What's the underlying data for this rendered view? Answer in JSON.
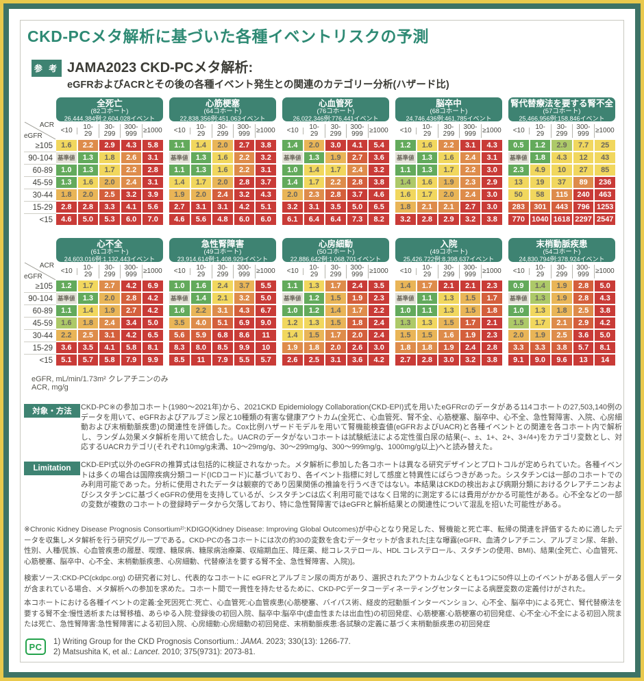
{
  "page": {
    "title": "CKD-PCメタ解析に基づいた各種イベントリスクの予測",
    "ref_badge": "参 考",
    "heading": "JAMA2023 CKD-PCメタ解析:",
    "subheading": "eGFRおよびACRとその後の各種イベント発生との関連のカテゴリー分析(ハザード比)"
  },
  "colors": {
    "frame_yellow": "#e9c94d",
    "frame_teal": "#3d7366",
    "header_teal": "#3e8372",
    "title_green": "#2e8a74"
  },
  "palette": {
    "b": "#e2e1d6",
    "g": "#63aa5c",
    "lg": "#adc968",
    "y": "#f1d75e",
    "t": "#e9b557",
    "o": "#de8c4b",
    "ro": "#d45f3c",
    "r": "#c93b37"
  },
  "axis": {
    "col_label": "ACR",
    "row_label": "eGFR",
    "col_headers": [
      "<10",
      "10-\n29",
      "30-\n299",
      "300-\n999",
      "≥1000"
    ],
    "row_headers": [
      "≥105",
      "90-104",
      "60-89",
      "45-59",
      "30-44",
      "15-29",
      "<15"
    ]
  },
  "tables": [
    {
      "name": "全死亡",
      "cohort": "(82コホート)",
      "counts": "26,444,384例:2,604,028イベント",
      "rows": [
        [
          "1.6|y",
          "2.2|o",
          "2.9|r",
          "4.3|r",
          "5.8|r"
        ],
        [
          "基準値|b",
          "1.3|g",
          "1.8|y",
          "2.6|o",
          "3.1|r"
        ],
        [
          "1.0|g",
          "1.3|g",
          "1.7|y",
          "2.2|o",
          "2.8|r"
        ],
        [
          "1.3|g",
          "1.6|y",
          "2.0|t",
          "2.4|o",
          "3.1|r"
        ],
        [
          "1.8|t",
          "2.0|t",
          "2.5|ro",
          "3.2|r",
          "3.9|r"
        ],
        [
          "2.8|r",
          "2.8|r",
          "3.3|r",
          "4.1|r",
          "5.6|r"
        ],
        [
          "4.6|r",
          "5.0|r",
          "5.3|r",
          "6.0|r",
          "7.0|r"
        ]
      ]
    },
    {
      "name": "心筋梗塞",
      "cohort": "(64コホート)",
      "counts": "22,838,356例:451,063イベント",
      "rows": [
        [
          "1.1|g",
          "1.4|y",
          "2.0|t",
          "2.7|r",
          "3.8|r"
        ],
        [
          "基準値|b",
          "1.3|g",
          "1.6|y",
          "2.2|o",
          "3.2|r"
        ],
        [
          "1.1|g",
          "1.3|g",
          "1.6|y",
          "2.2|o",
          "3.1|r"
        ],
        [
          "1.4|y",
          "1.7|y",
          "2.0|t",
          "2.8|r",
          "3.7|r"
        ],
        [
          "1.9|t",
          "2.0|t",
          "2.4|ro",
          "3.2|r",
          "4.3|r"
        ],
        [
          "2.7|r",
          "3.1|r",
          "3.1|r",
          "4.2|r",
          "5.1|r"
        ],
        [
          "4.6|r",
          "5.6|r",
          "4.8|r",
          "6.0|r",
          "6.0|r"
        ]
      ]
    },
    {
      "name": "心血管死",
      "cohort": "(76コホート)",
      "counts": "26,022,346例:776,441イベント",
      "rows": [
        [
          "1.4|g",
          "2.0|t",
          "3.0|r",
          "4.1|r",
          "5.4|r"
        ],
        [
          "基準値|b",
          "1.3|g",
          "1.9|t",
          "2.7|ro",
          "3.6|r"
        ],
        [
          "1.0|g",
          "1.4|y",
          "1.7|y",
          "2.4|o",
          "3.2|r"
        ],
        [
          "1.4|g",
          "1.7|y",
          "2.2|o",
          "2.8|ro",
          "3.8|r"
        ],
        [
          "2.0|t",
          "2.3|o",
          "2.8|ro",
          "3.7|r",
          "4.6|r"
        ],
        [
          "3.2|r",
          "3.1|r",
          "3.5|r",
          "5.0|r",
          "6.5|r"
        ],
        [
          "6.1|r",
          "6.4|r",
          "6.4|r",
          "7.3|r",
          "8.2|r"
        ]
      ]
    },
    {
      "name": "脳卒中",
      "cohort": "(68コホート)",
      "counts": "24,746,436例:461,785イベント",
      "rows": [
        [
          "1.2|g",
          "1.6|y",
          "2.2|o",
          "3.1|r",
          "4.3|r"
        ],
        [
          "基準値|b",
          "1.3|g",
          "1.6|y",
          "2.4|o",
          "3.1|r"
        ],
        [
          "1.1|g",
          "1.3|g",
          "1.7|y",
          "2.2|o",
          "3.0|r"
        ],
        [
          "1.4|lg",
          "1.6|y",
          "1.9|t",
          "2.3|o",
          "2.9|r"
        ],
        [
          "1.6|y",
          "1.7|y",
          "2.0|t",
          "2.4|o",
          "3.0|r"
        ],
        [
          "1.8|t",
          "2.1|o",
          "2.1|o",
          "2.7|r",
          "3.0|r"
        ],
        [
          "3.2|r",
          "2.8|r",
          "2.9|r",
          "3.2|r",
          "3.8|r"
        ]
      ]
    },
    {
      "name": "腎代替療法を要する腎不全",
      "cohort": "(57コホート)",
      "counts": "25,466,956例:158,846イベント",
      "rows": [
        [
          "0.5|g",
          "1.2|g",
          "2.9|lg",
          "7.7|y",
          "25|y"
        ],
        [
          "基準値|b",
          "1.8|g",
          "4.3|y",
          "12|y",
          "43|y"
        ],
        [
          "2.3|g",
          "4.9|y",
          "10|y",
          "27|y",
          "85|y"
        ],
        [
          "13|y",
          "19|y",
          "37|y",
          "89|o",
          "236|r"
        ],
        [
          "50|y",
          "58|y",
          "115|o",
          "240|r",
          "463|r"
        ],
        [
          "283|ro",
          "301|ro",
          "443|ro",
          "796|r",
          "1253|r"
        ],
        [
          "770|r",
          "1040|r",
          "1618|r",
          "2297|r",
          "2547|r"
        ]
      ]
    },
    {
      "name": "心不全",
      "cohort": "(61コホート)",
      "counts": "24,603,016例:1,132,443イベント",
      "rows": [
        [
          "1.2|g",
          "1.7|y",
          "2.7|o",
          "4.2|r",
          "6.9|r"
        ],
        [
          "基準値|b",
          "1.3|g",
          "2.0|t",
          "2.8|ro",
          "4.2|r"
        ],
        [
          "1.1|g",
          "1.4|y",
          "1.9|t",
          "2.7|ro",
          "4.2|r"
        ],
        [
          "1.6|lg",
          "1.8|t",
          "2.4|o",
          "3.4|r",
          "5.0|r"
        ],
        [
          "2.2|t",
          "2.5|o",
          "3.1|ro",
          "4.2|r",
          "6.5|r"
        ],
        [
          "3.6|r",
          "3.5|r",
          "4.1|r",
          "5.8|r",
          "8.1|r"
        ],
        [
          "5.1|r",
          "5.7|r",
          "5.8|r",
          "7.9|r",
          "9.9|r"
        ]
      ]
    },
    {
      "name": "急性腎障害",
      "cohort": "(49コホート)",
      "counts": "23,914,614例:1,408,929イベント",
      "rows": [
        [
          "1.0|g",
          "1.6|g",
          "2.4|y",
          "3.7|t",
          "5.5|r"
        ],
        [
          "基準値|b",
          "1.4|g",
          "2.1|y",
          "3.2|o",
          "5.0|r"
        ],
        [
          "1.6|g",
          "2.2|t",
          "3.1|o",
          "4.3|ro",
          "6.7|r"
        ],
        [
          "3.5|t",
          "4.0|o",
          "5.1|ro",
          "6.9|r",
          "9.0|r"
        ],
        [
          "5.6|ro",
          "5.9|ro",
          "6.8|r",
          "8.6|r",
          "11|r"
        ],
        [
          "8.3|r",
          "8.0|r",
          "8.5|r",
          "9.9|r",
          "10|r"
        ],
        [
          "8.5|r",
          "11|r",
          "7.9|r",
          "5.5|r",
          "5.7|r"
        ]
      ]
    },
    {
      "name": "心房細動",
      "cohort": "(50コホート)",
      "counts": "22,886,642例:1,068,701イベント",
      "rows": [
        [
          "1.1|g",
          "1.3|y",
          "1.7|o",
          "2.4|r",
          "3.5|r"
        ],
        [
          "基準値|b",
          "1.2|g",
          "1.5|t",
          "1.9|ro",
          "2.3|r"
        ],
        [
          "1.0|g",
          "1.2|g",
          "1.4|t",
          "1.7|o",
          "2.2|r"
        ],
        [
          "1.2|y",
          "1.3|y",
          "1.5|t",
          "1.8|ro",
          "2.4|r"
        ],
        [
          "1.4|y",
          "1.5|t",
          "1.7|o",
          "2.0|ro",
          "2.4|r"
        ],
        [
          "1.9|o",
          "1.8|o",
          "2.0|ro",
          "2.6|r",
          "3.0|r"
        ],
        [
          "2.6|r",
          "2.5|r",
          "3.1|r",
          "3.6|r",
          "4.2|r"
        ]
      ]
    },
    {
      "name": "入院",
      "cohort": "(49コホート)",
      "counts": "25,426,722例:8,398,637イベント",
      "rows": [
        [
          "1.4|t",
          "1.7|o",
          "2.1|r",
          "2.1|r",
          "2.3|r"
        ],
        [
          "基準値|b",
          "1.1|g",
          "1.3|y",
          "1.5|t",
          "1.7|ro"
        ],
        [
          "1.0|g",
          "1.1|g",
          "1.3|y",
          "1.5|t",
          "1.8|ro"
        ],
        [
          "1.3|lg",
          "1.3|y",
          "1.5|t",
          "1.7|ro",
          "2.1|r"
        ],
        [
          "1.5|t",
          "1.5|t",
          "1.6|o",
          "1.9|ro",
          "2.3|r"
        ],
        [
          "1.8|o",
          "1.8|o",
          "1.9|ro",
          "2.4|r",
          "2.8|r"
        ],
        [
          "2.7|r",
          "2.8|r",
          "3.0|r",
          "3.2|r",
          "3.8|r"
        ]
      ]
    },
    {
      "name": "末梢動脈疾患",
      "cohort": "(54コホート)",
      "counts": "24,830,794例:378,924イベント",
      "rows": [
        [
          "0.9|g",
          "1.4|lg",
          "1.9|t",
          "2.8|ro",
          "5.0|r"
        ],
        [
          "基準値|b",
          "1.3|lg",
          "1.9|t",
          "2.8|ro",
          "4.3|r"
        ],
        [
          "1.0|g",
          "1.3|y",
          "1.8|t",
          "2.5|o",
          "3.8|r"
        ],
        [
          "1.5|lg",
          "1.7|y",
          "2.1|o",
          "2.9|ro",
          "4.2|r"
        ],
        [
          "2.0|t",
          "1.9|t",
          "2.5|o",
          "3.6|r",
          "5.0|r"
        ],
        [
          "3.3|ro",
          "3.3|ro",
          "3.8|ro",
          "5.7|r",
          "8.1|r"
        ],
        [
          "9.1|r",
          "9.0|r",
          "9.6|r",
          "13|r",
          "14|r"
        ]
      ]
    }
  ],
  "footnotes": [
    "eGFR, mL/min/1.73m² クレアチニンのみ",
    "ACR, mg/g"
  ],
  "methods": {
    "label": "対象・方法",
    "text": "CKD-PC※の参加コホート(1980〜2021年)から、2021CKD Epidemiology Collaboration(CKD-EPI)式を用いたeGFRcrのデータがある114コホートの27,503,140例のデータを用いて、eGFRおよびアルブミン尿と10種類の有害な健康アウトカム(全死亡、心血管死、腎不全、心筋梗塞、脳卒中、心不全、急性腎障害、入院、心房細動および末梢動脈疾患)の関連性を評価した。Cox比例ハザードモデルを用いて腎機能検査値(eGFRおよびUACR)と各種イベントとの関連を各コホート内で解析し、ランダム効果メタ解析を用いて統合した。UACRのデータがないコホートは試験紙法による定性蛋白尿の結果(−、±、1+、2+、3+/4+)をカテゴリ変数とし、対応するUACRカテゴリ(それぞれ10mg/g未満、10〜29mg/g、30〜299mg/g、300〜999mg/g、1000mg/g以上)へと読み替えた。"
  },
  "limitation": {
    "label": "Limitation",
    "text": "CKD-EPI式以外のeGFRの推算式は包括的に検証されなかった。メタ解析に参加した各コホートは異なる研究デザインとプロトコルが定められていた。各種イベントは多くの場合は国際疾病分類コード(ICDコード)に基づいており、各イベント指標に対して感度と特異性にばらつきがあった。シスタチンCは一部のコホートでのみ利用可能であった。分析に使用されたデータは観察的であり因果関係の推論を行うべきではない。本結果はCKDの検出および病期分類におけるクレアチニンおよびシスタチンCに基づくeGFRの使用を支持しているが、シスタチンCは広く利用可能ではなく日常的に測定するには費用がかかる可能性がある。心不全などの一部の変数が複数のコホートの登録時データから欠落しており、特に急性腎障害ではeGFRと解析結果との関連性について混乱を招いた可能性がある。"
  },
  "notes": [
    "※Chronic Kidney Disease Prognosis Consortium²⁾:KDIGO(Kidney Disease: Improving Global Outcomes)が中心となり発足した、腎機能と死亡率、転帰の関連を評価するために適したデータを収集しメタ解析を行う研究グループである。CKD-PCの各コホートには次の約30の変数を含むデータセットが含まれた[主な曝露(eGFR、血清クレアチニン、アルブミン尿、年齢、性別、人種/民族、心血管疾患の履歴、喫煙、糖尿病、糖尿病治療薬、収縮期血圧、降圧薬、総コレステロール、HDL コレステロール、スタチンの使用、BMI)、結果(全死亡、心血管死、心筋梗塞、脳卒中、心不全、末梢動脈疾患、心房細動、代替療法を要する腎不全、急性腎障害、入院)]。",
    "検索ソース:CKD-PC(ckdpc.org) の研究者に対し、代表的なコホートに eGFRとアルブミン尿の両方があり、選択されたアウトカム少なくとも1つに50件以上のイベントがある個人データが含まれている場合、メタ解析への参加を求めた。コホート間で一貫性を持たせるために、CKD-PCデータコーディネーティングセンターによる病歴変数の定義付けがされた。",
    "本コホートにおける各種イベントの定義:全死因死亡:死亡、心血管死:心血管疾患(心筋梗塞、バイパス術、経皮的冠動脈インターベンション、心不全、脳卒中)による死亡、腎代替療法を要する腎不全:慢性透析または腎移植、あらゆる入院:登録後の初回入院、脳卒中:脳卒中(虚血性または出血性)の初回発症、心筋梗塞:心筋梗塞の初回発症、心不全:心不全による初回入院または死亡、急性腎障害:急性腎障害による初回入院、心房細動:心房細動の初回発症、末梢動脈疾患:各試験の定義に基づく末梢動脈疾患の初回発症"
  ],
  "references": {
    "logo": "PC",
    "items": [
      {
        "pre": "1) Writing Group for the CKD Prognosis Consortium.: ",
        "journal": "JAMA",
        "post": ". 2023; 330(13): 1266-77."
      },
      {
        "pre": "2) Matsushita K, et al.: ",
        "journal": "Lancet",
        "post": ". 2010; 375(9731): 2073-81."
      }
    ]
  }
}
